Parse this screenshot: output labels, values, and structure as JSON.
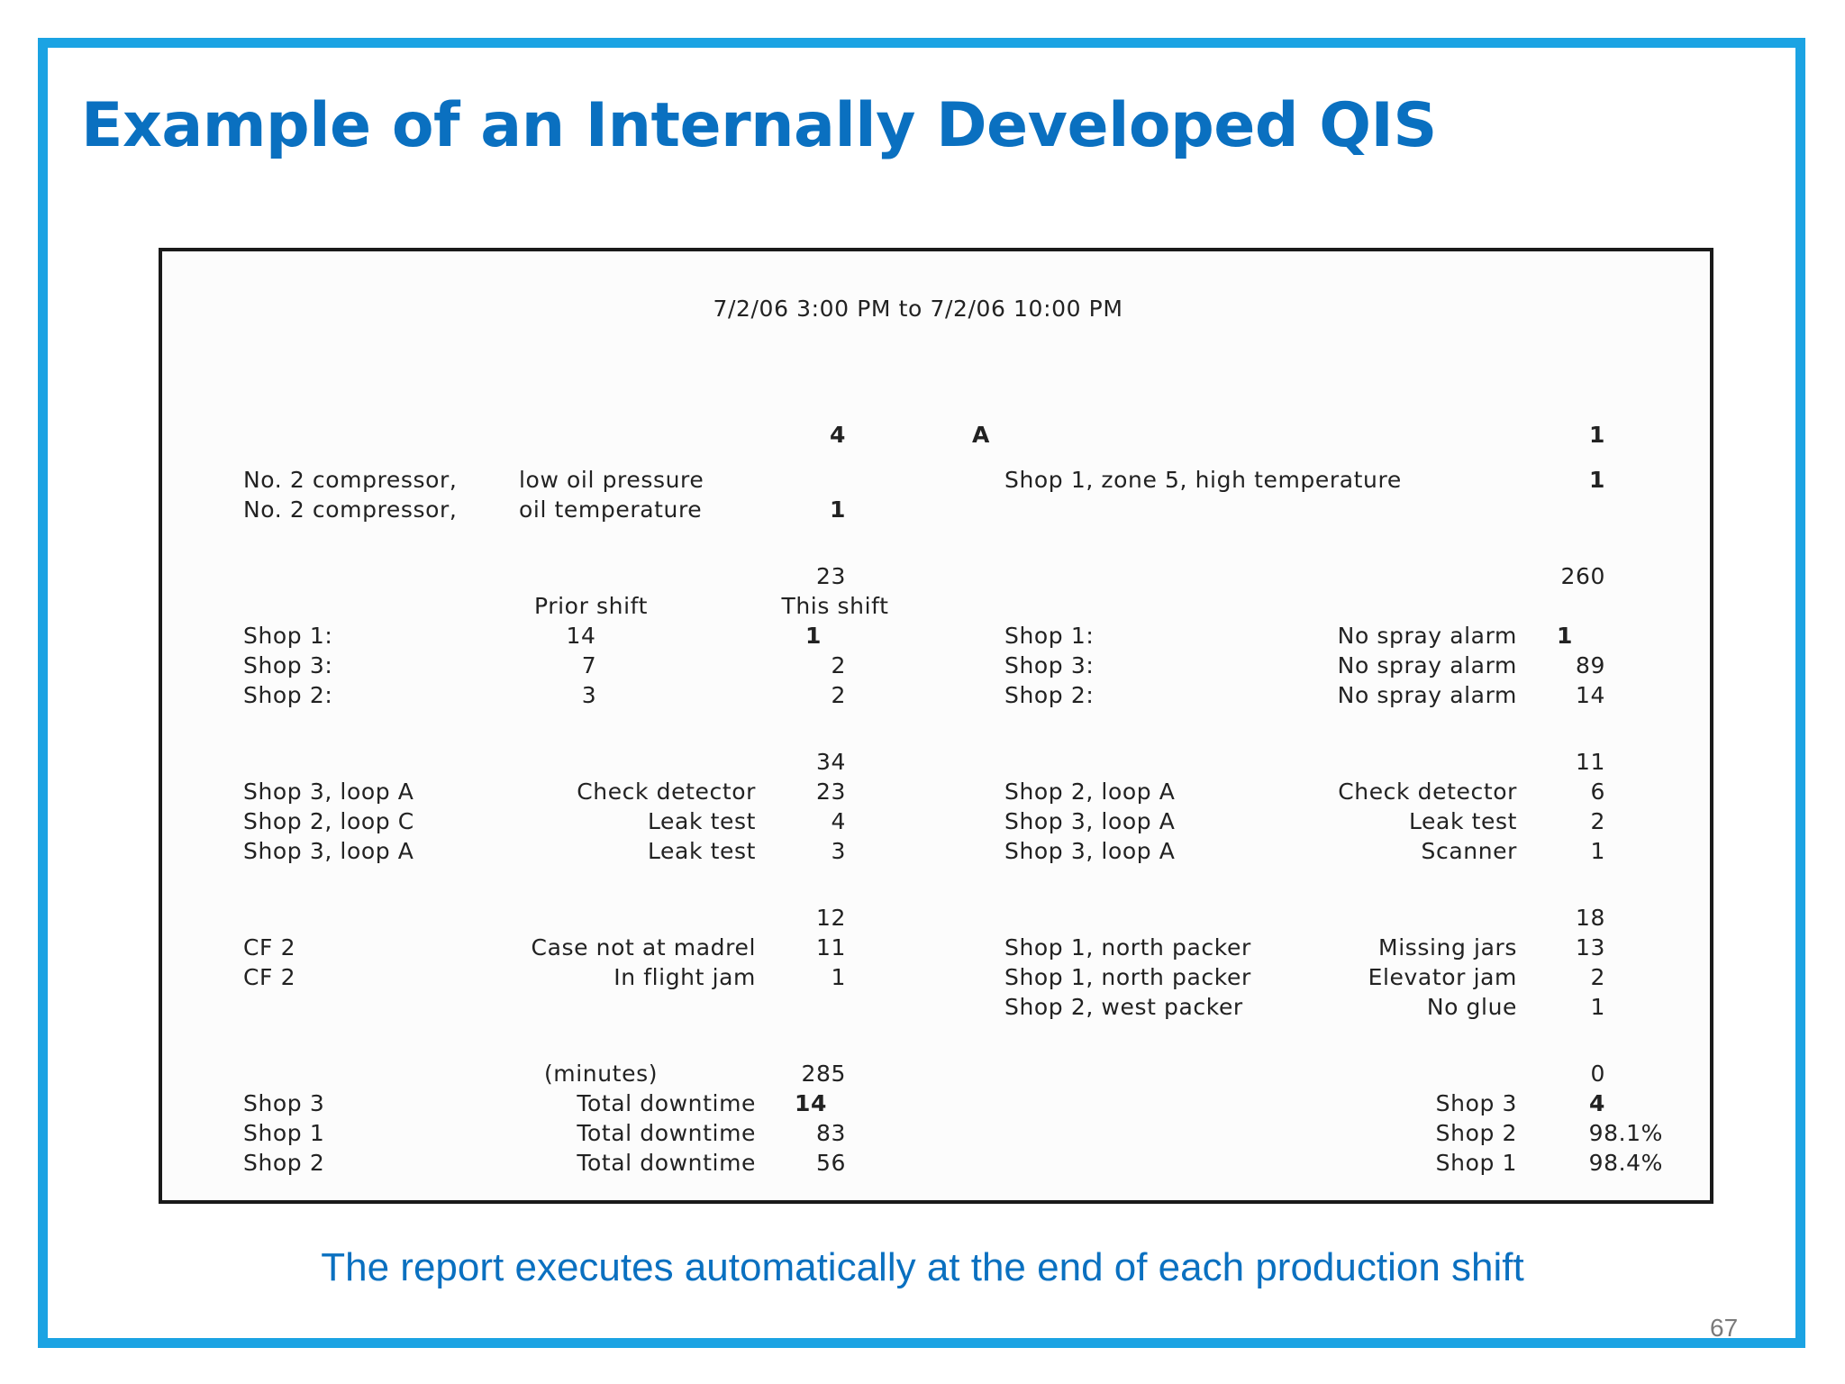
{
  "slide": {
    "title": "Example of an Internally Developed QIS",
    "caption": "The report executes automatically at the end of each production shift",
    "page_number": "67",
    "colors": {
      "frame": "#1ba3e3",
      "title": "#0a70c0"
    }
  },
  "report": {
    "date_range": "7/2/06 3:00 PM to 7/2/06 10:00 PM",
    "s1": {
      "left_total": "4",
      "center_grade": "A",
      "right_total": "1",
      "left_rows": [
        {
          "label": "No. 2 compressor,",
          "detail": "low oil pressure",
          "value": ""
        },
        {
          "label": "No. 2 compressor,",
          "detail": "oil temperature",
          "value": "1"
        }
      ],
      "right_rows": [
        {
          "label": "Shop 1, zone 5, high  temperature",
          "value": "1"
        }
      ]
    },
    "s2": {
      "left_total": "23",
      "right_total": "260",
      "col_prior": "Prior shift",
      "col_this": "This shift",
      "left_rows": [
        {
          "label": "Shop 1:",
          "prior": "14",
          "this": "1"
        },
        {
          "label": "Shop 3:",
          "prior": "7",
          "this": "2"
        },
        {
          "label": "Shop 2:",
          "prior": "3",
          "this": "2"
        }
      ],
      "right_rows": [
        {
          "label": "Shop 1:",
          "detail": "No spray alarm",
          "value": "1"
        },
        {
          "label": "Shop 3:",
          "detail": "No spray alarm",
          "value": "89"
        },
        {
          "label": "Shop 2:",
          "detail": "No spray alarm",
          "value": "14"
        }
      ]
    },
    "s3": {
      "left_total": "34",
      "right_total": "11",
      "left_rows": [
        {
          "label": "Shop 3, loop A",
          "detail": "Check detector",
          "value": "23"
        },
        {
          "label": "Shop 2, loop C",
          "detail": "Leak test",
          "value": "4"
        },
        {
          "label": "Shop 3, loop A",
          "detail": "Leak test",
          "value": "3"
        }
      ],
      "right_rows": [
        {
          "label": "Shop 2, loop A",
          "detail": "Check detector",
          "value": "6"
        },
        {
          "label": "Shop 3, loop A",
          "detail": "Leak test",
          "value": "2"
        },
        {
          "label": "Shop 3, loop A",
          "detail": "Scanner",
          "value": "1"
        }
      ]
    },
    "s4": {
      "left_total": "12",
      "right_total": "18",
      "left_rows": [
        {
          "label": "CF 2",
          "detail": "Case not at madrel",
          "value": "11"
        },
        {
          "label": "CF 2",
          "detail": "In flight jam",
          "value": "1"
        }
      ],
      "right_rows": [
        {
          "label": "Shop 1, north packer",
          "detail": "Missing jars",
          "value": "13"
        },
        {
          "label": "Shop 1, north packer",
          "detail": "Elevator jam",
          "value": "2"
        },
        {
          "label": "Shop 2, west packer",
          "detail": "No glue",
          "value": "1"
        }
      ]
    },
    "s5": {
      "units": "(minutes)",
      "left_total": "285",
      "right_total": "0",
      "left_rows": [
        {
          "label": "Shop 3",
          "detail": "Total downtime",
          "value": "14"
        },
        {
          "label": "Shop 1",
          "detail": "Total downtime",
          "value": "83"
        },
        {
          "label": "Shop 2",
          "detail": "Total downtime",
          "value": "56"
        }
      ],
      "right_rows": [
        {
          "label": "Shop 3",
          "value": "4"
        },
        {
          "label": "Shop 2",
          "value": "98.1%"
        },
        {
          "label": "Shop 1",
          "value": "98.4%"
        }
      ]
    }
  }
}
